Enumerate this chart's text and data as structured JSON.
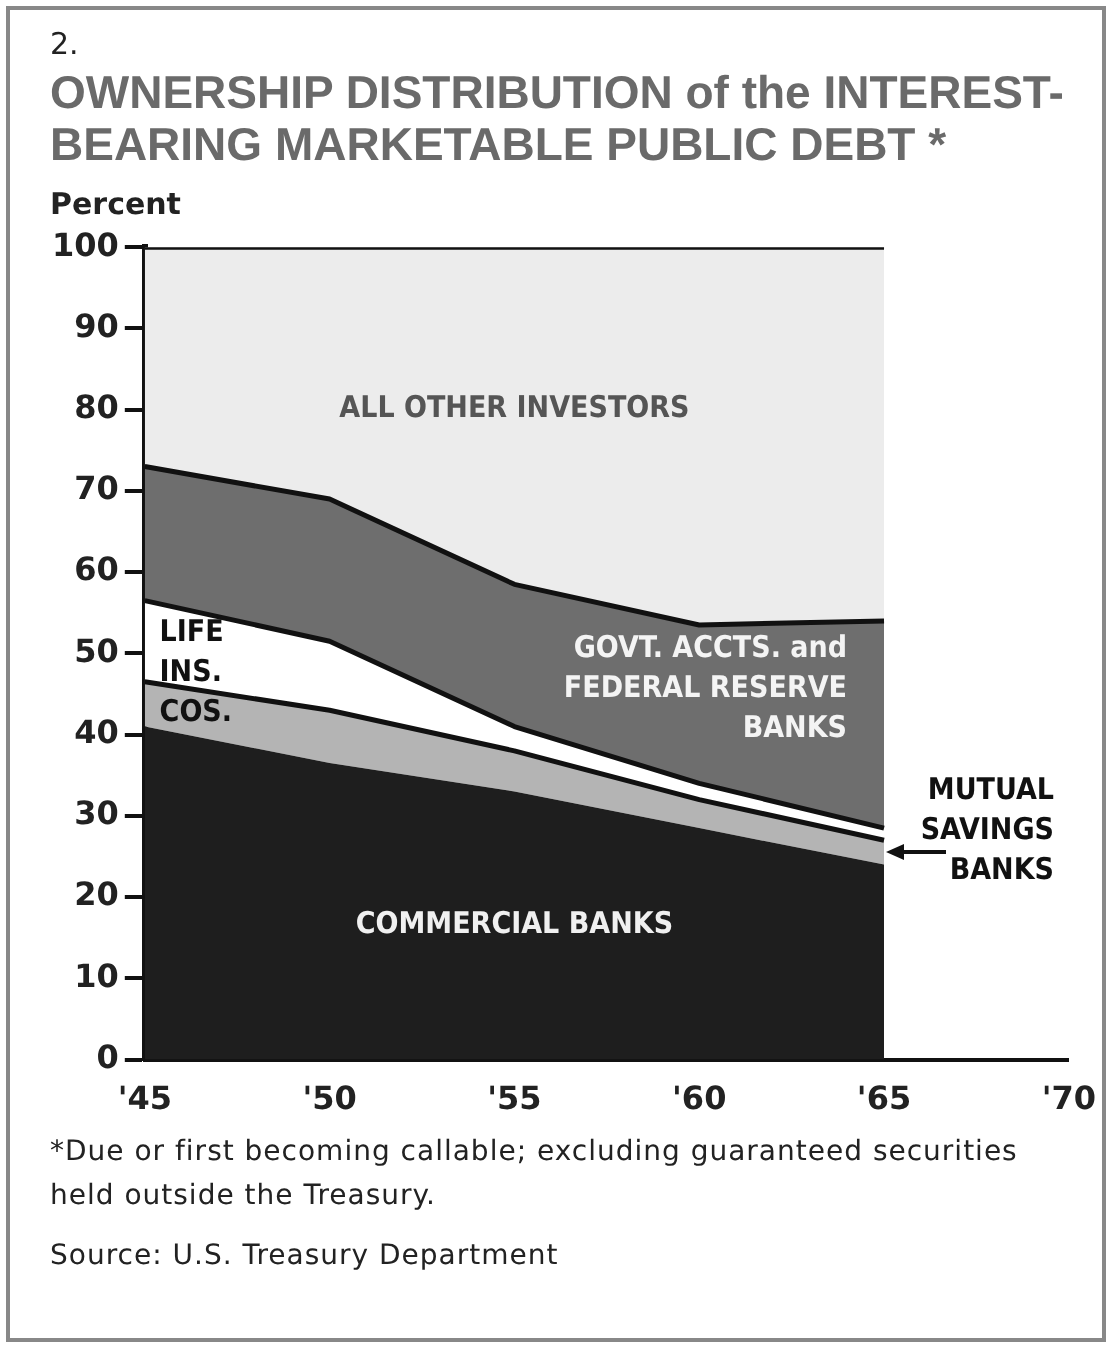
{
  "chart_data": {
    "type": "area",
    "title": "OWNERSHIP DISTRIBUTION of the INTEREST-BEARING MARKETABLE PUBLIC DEBT *",
    "ylabel": "Percent",
    "stacked": true,
    "x": [
      1945,
      1950,
      1955,
      1960,
      1965
    ],
    "series": [
      {
        "name": "COMMERCIAL BANKS",
        "color": "#1e1e1e",
        "values": [
          41,
          36.5,
          33,
          28.5,
          24
        ]
      },
      {
        "name": "MUTUAL SAVINGS BANKS",
        "color": "#b4b4b4",
        "values": [
          5.5,
          6.5,
          5,
          3.5,
          3
        ]
      },
      {
        "name": "LIFE INS. COS.",
        "color": "#ffffff",
        "values": [
          10,
          8.5,
          3,
          2,
          1.5
        ]
      },
      {
        "name": "GOVT. ACCTS. and FEDERAL RESERVE BANKS",
        "color": "#6e6e6e",
        "values": [
          16.5,
          17.5,
          17.5,
          19.5,
          25.5
        ]
      },
      {
        "name": "ALL OTHER INVESTORS",
        "color": "#ececec",
        "values": [
          27,
          31,
          41.5,
          46.5,
          46
        ]
      }
    ],
    "xlim": [
      1945,
      1970
    ],
    "xticks": [
      {
        "value": 1945,
        "label": "'45"
      },
      {
        "value": 1950,
        "label": "'50"
      },
      {
        "value": 1955,
        "label": "'55"
      },
      {
        "value": 1960,
        "label": "'60"
      },
      {
        "value": 1965,
        "label": "'65"
      },
      {
        "value": 1970,
        "label": "'70"
      }
    ],
    "ylim": [
      0,
      100
    ],
    "yticks": [
      0,
      10,
      20,
      30,
      40,
      50,
      60,
      70,
      80,
      90,
      100
    ],
    "grid": false,
    "legend": false,
    "annotations": [
      "2.",
      "*Due or first becoming callable; excluding guaranteed securities held outside the Treasury.",
      "Source:  U.S. Treasury Department"
    ]
  }
}
